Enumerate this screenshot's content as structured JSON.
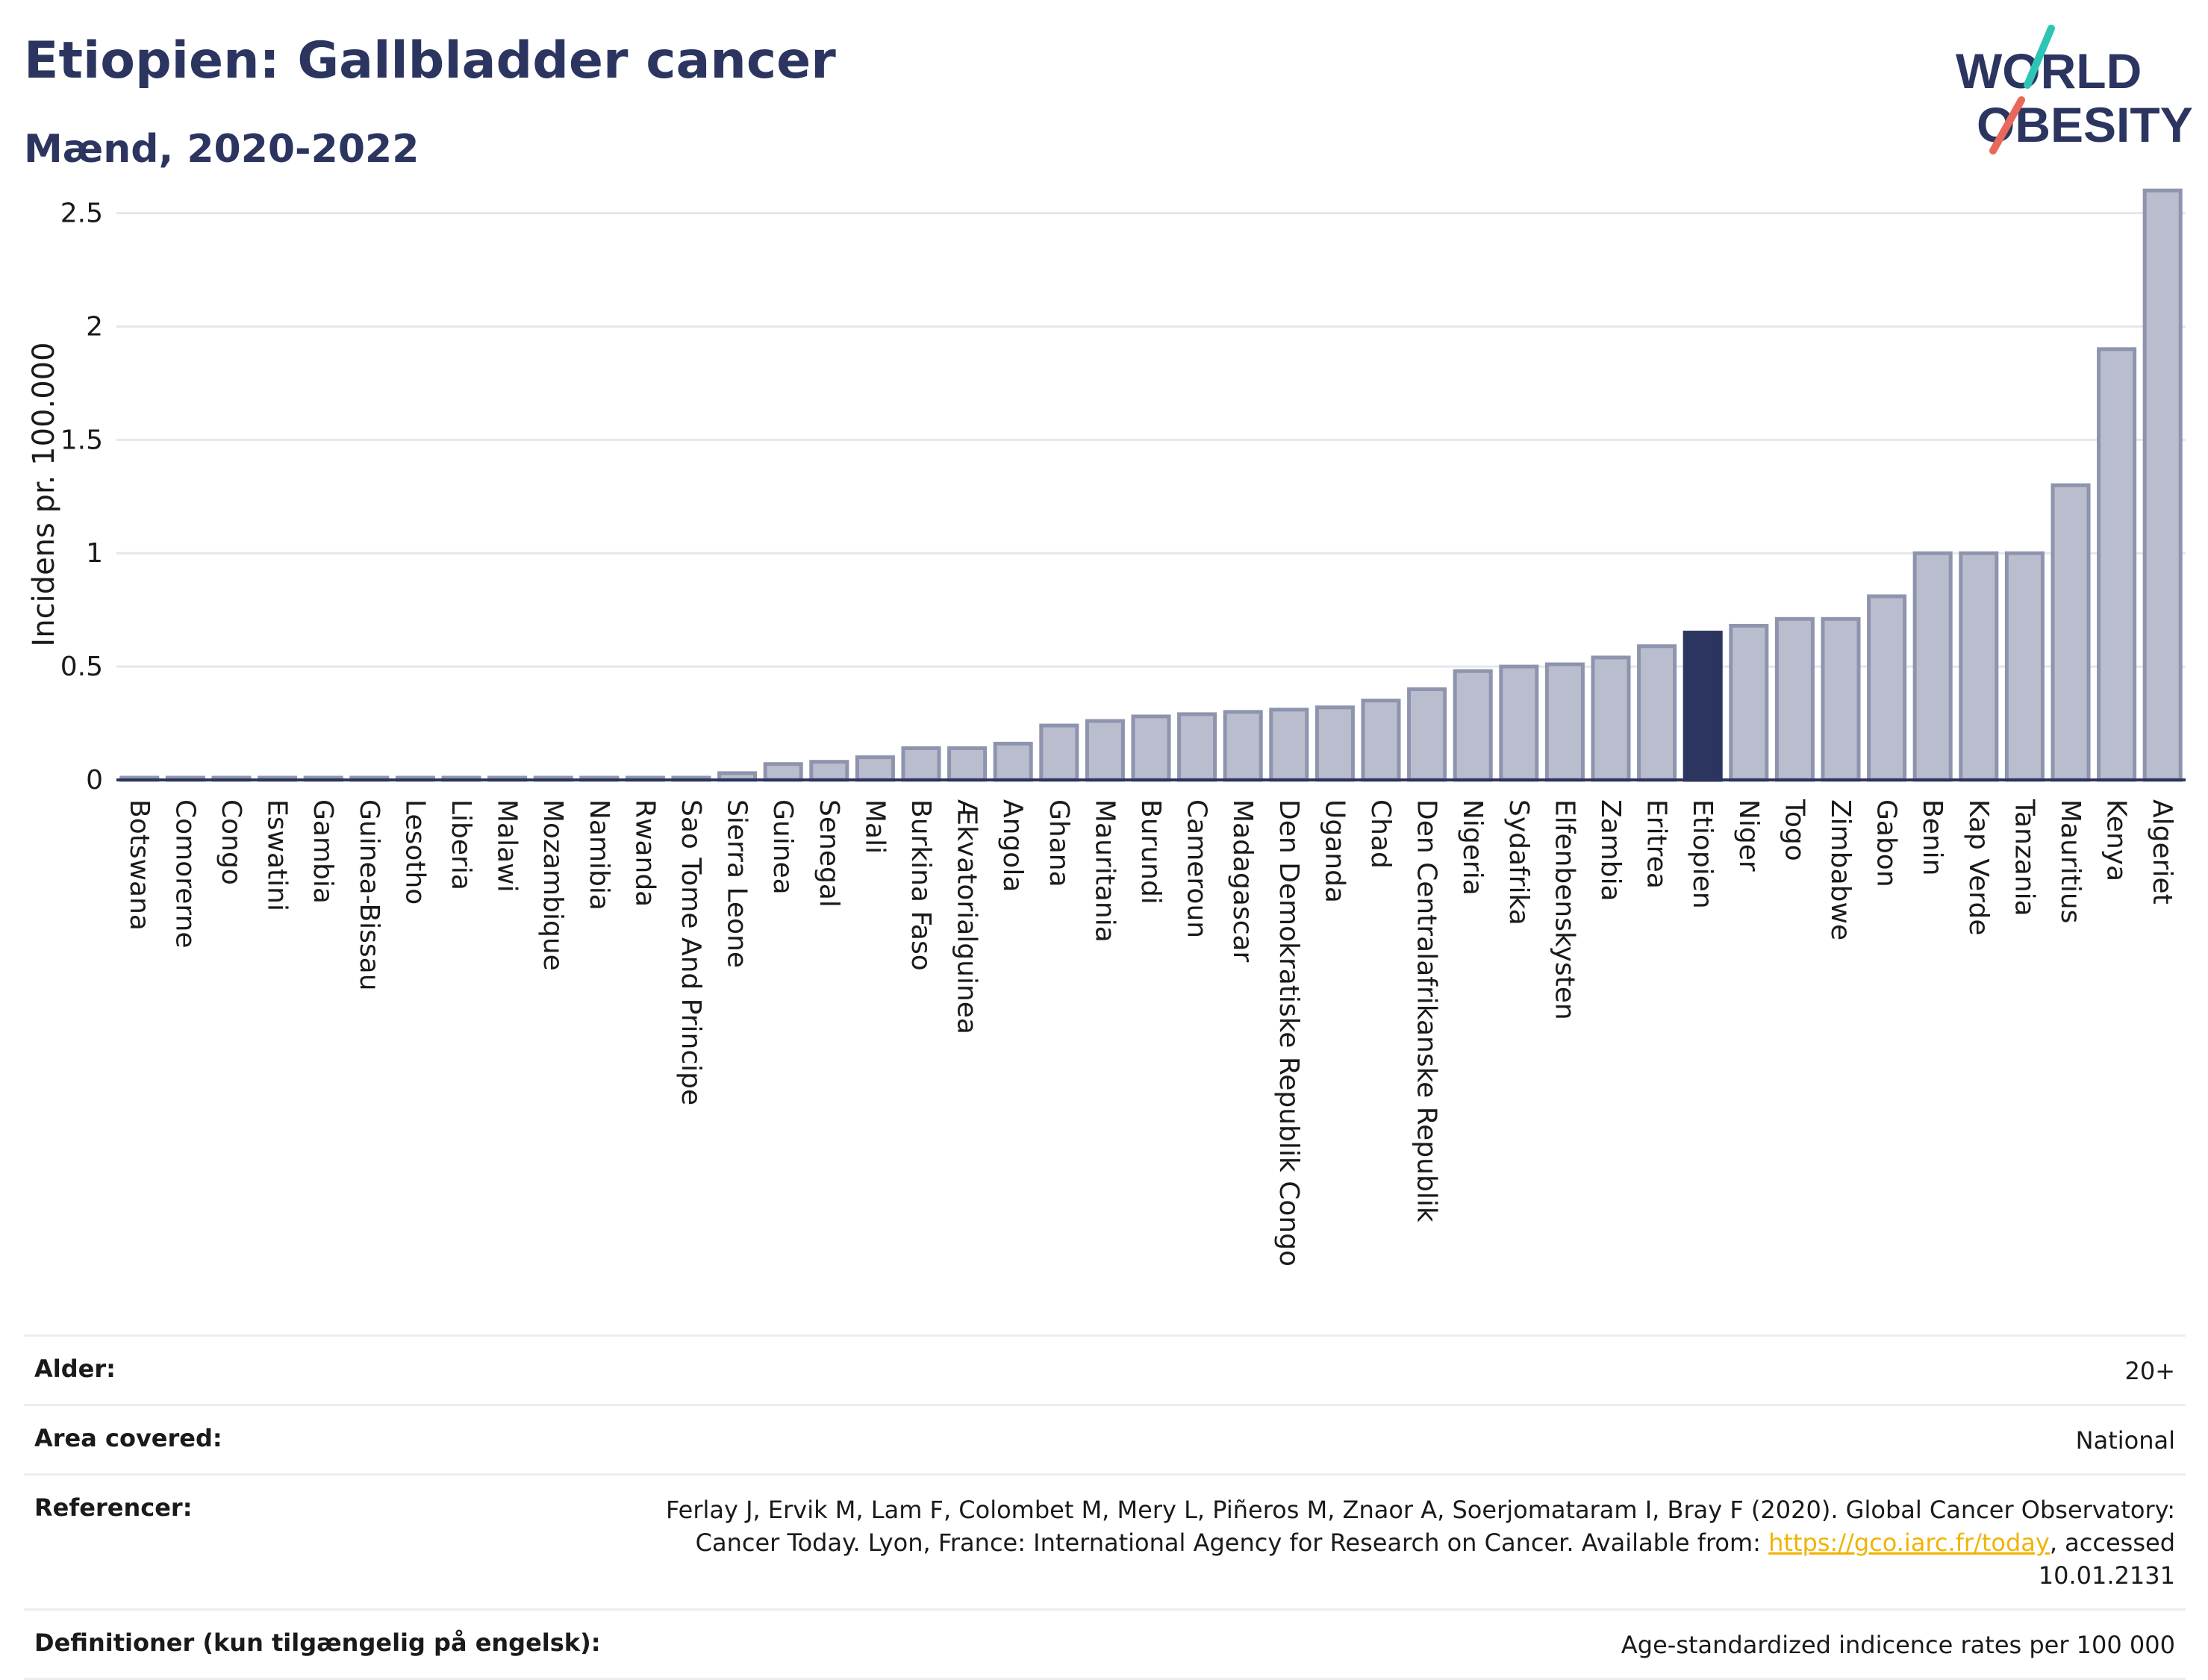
{
  "header": {
    "title": "Etiopien: Gallbladder cancer",
    "subtitle": "Mænd, 2020-2022"
  },
  "logo": {
    "line1": "WORLD",
    "line2": "OBESITY",
    "accent_teal": "#2ec4b6",
    "accent_red": "#e8685a"
  },
  "colors": {
    "bar": "#b9bdcd",
    "bar_stroke": "#8e94ad",
    "highlight": "#2b3560",
    "grid": "#e6e6ec",
    "axis": "#2b3560",
    "text": "#1a1a1a"
  },
  "chart_data": {
    "type": "bar",
    "ylabel": "Incidens pr. 100.000",
    "ylim": [
      0,
      2.65
    ],
    "yticks": [
      0,
      0.5,
      1,
      1.5,
      2,
      2.5
    ],
    "ytick_labels": [
      "0",
      "0.5",
      "1",
      "1.5",
      "2",
      "2.5"
    ],
    "grid": true,
    "highlight": "Etiopien",
    "categories": [
      "Botswana",
      "Comorerne",
      "Congo",
      "Eswatini",
      "Gambia",
      "Guinea-Bissau",
      "Lesotho",
      "Liberia",
      "Malawi",
      "Mozambique",
      "Namibia",
      "Rwanda",
      "Sao Tome And Principe",
      "Sierra Leone",
      "Guinea",
      "Senegal",
      "Mali",
      "Burkina Faso",
      "Ækvatorialguinea",
      "Angola",
      "Ghana",
      "Mauritania",
      "Burundi",
      "Cameroun",
      "Madagascar",
      "Den Demokratiske Republik Congo",
      "Uganda",
      "Chad",
      "Den Centralafrikanske Republik",
      "Nigeria",
      "Sydafrika",
      "Elfenbenskysten",
      "Zambia",
      "Eritrea",
      "Etiopien",
      "Niger",
      "Togo",
      "Zimbabwe",
      "Gabon",
      "Benin",
      "Kap Verde",
      "Tanzania",
      "Mauritius",
      "Kenya",
      "Algeriet"
    ],
    "values": [
      0.01,
      0.01,
      0.01,
      0.01,
      0.01,
      0.01,
      0.01,
      0.01,
      0.01,
      0.01,
      0.01,
      0.01,
      0.01,
      0.03,
      0.07,
      0.08,
      0.1,
      0.14,
      0.14,
      0.16,
      0.24,
      0.26,
      0.28,
      0.29,
      0.3,
      0.31,
      0.32,
      0.35,
      0.4,
      0.48,
      0.5,
      0.51,
      0.54,
      0.59,
      0.65,
      0.68,
      0.71,
      0.71,
      0.81,
      1.0,
      1.0,
      1.0,
      1.3,
      1.9,
      2.6
    ]
  },
  "info": {
    "age_label": "Alder:",
    "age_value": "20+",
    "area_label": "Area covered:",
    "area_value": "National",
    "ref_label": "Referencer:",
    "ref_text_1": "Ferlay J, Ervik M, Lam F, Colombet M, Mery L, Piñeros M, Znaor A, Soerjomataram I, Bray F (2020). Global Cancer Observatory: Cancer Today. Lyon, France: International Agency for Research on Cancer. Available from: ",
    "ref_link": "https://gco.iarc.fr/today",
    "ref_text_2": ", accessed 10.01.2131",
    "def_label": "Definitioner (kun tilgængelig på engelsk):",
    "def_value": "Age-standardized indicence rates per 100 000"
  }
}
